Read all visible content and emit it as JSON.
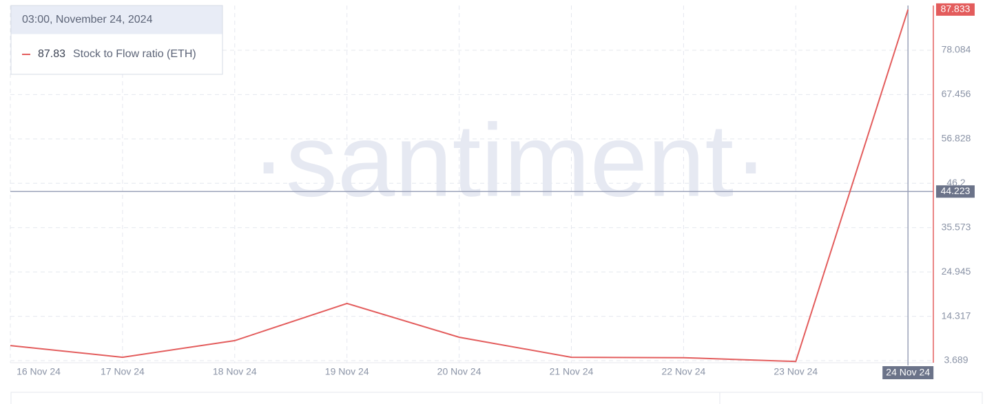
{
  "chart_data": {
    "type": "line",
    "watermark": "·santiment·",
    "categories": [
      "16 Nov 24",
      "17 Nov 24",
      "18 Nov 24",
      "19 Nov 24",
      "20 Nov 24",
      "21 Nov 24",
      "22 Nov 24",
      "23 Nov 24",
      "24 Nov 24"
    ],
    "series": [
      {
        "name": "Stock to Flow ratio (ETH)",
        "color": "#e35c5c",
        "values": [
          7.3,
          4.5,
          8.5,
          17.4,
          9.3,
          4.5,
          4.4,
          3.5,
          87.833
        ]
      }
    ],
    "ylim": [
      3.2,
      88.8
    ],
    "yticks": [
      3.689,
      14.317,
      24.945,
      35.573,
      46.2,
      56.828,
      67.456,
      78.084
    ],
    "grid": true,
    "crosshair": {
      "value": 44.223,
      "category": 8
    },
    "tooltip": {
      "date": "03:00, November 24, 2024",
      "value": 87.83,
      "label": "Stock to Flow ratio (ETH)"
    }
  }
}
